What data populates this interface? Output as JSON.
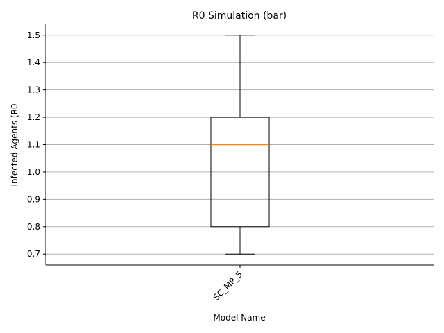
{
  "chart_data": {
    "type": "box",
    "title": "R0 Simulation (bar)",
    "xlabel": "Model Name",
    "ylabel": "Infected Agents (R0",
    "categories": [
      "SC_MP_5"
    ],
    "boxes": [
      {
        "name": "SC_MP_5",
        "whisker_low": 0.7,
        "q1": 0.8,
        "median": 1.1,
        "q3": 1.2,
        "whisker_high": 1.5
      }
    ],
    "yticks": [
      "0.7",
      "0.8",
      "0.9",
      "1.0",
      "1.1",
      "1.2",
      "1.3",
      "1.4",
      "1.5"
    ],
    "ylim": [
      0.66,
      1.54
    ],
    "grid": "y",
    "x_tick_rotation_deg": 45,
    "colors": {
      "box": "#000000",
      "median": "#ff7f0e",
      "grid": "#b0b0b0"
    }
  }
}
